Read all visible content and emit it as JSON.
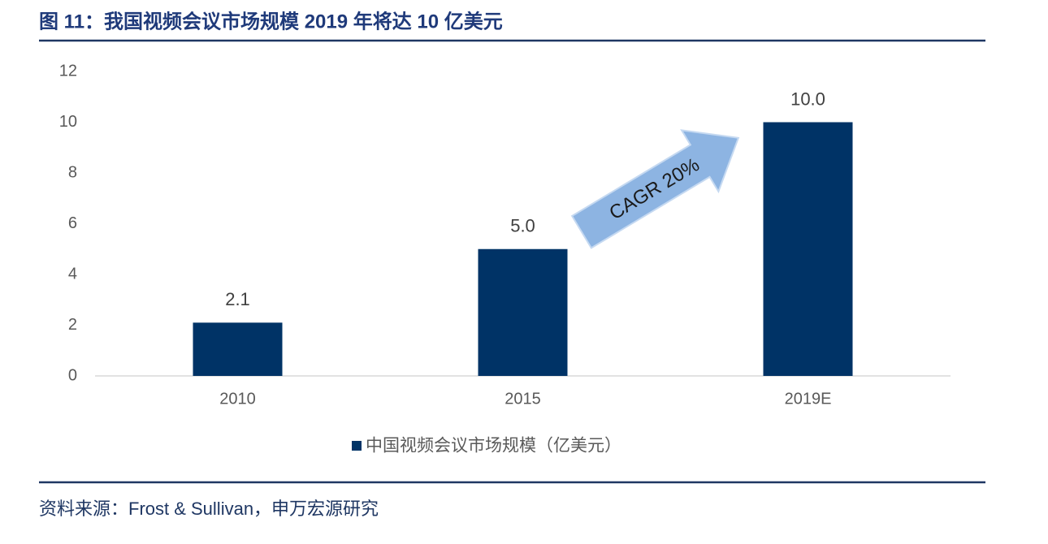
{
  "chart_data": {
    "type": "bar",
    "title": "图 11：我国视频会议市场规模 2019 年将达 10 亿美元",
    "categories": [
      "2010",
      "2015",
      "2019E"
    ],
    "series": [
      {
        "name": "中国视频会议市场规模（亿美元）",
        "color": "#003366",
        "values": [
          2.1,
          5.0,
          10.0
        ],
        "value_labels": [
          "2.1",
          "5.0",
          "10.0"
        ]
      }
    ],
    "ylim": [
      0,
      12
    ],
    "yticks": [
      0,
      2,
      4,
      6,
      8,
      10,
      12
    ],
    "grid": false,
    "annotation": "CAGR 20%",
    "source": "资料来源：Frost & Sullivan，申万宏源研究"
  }
}
